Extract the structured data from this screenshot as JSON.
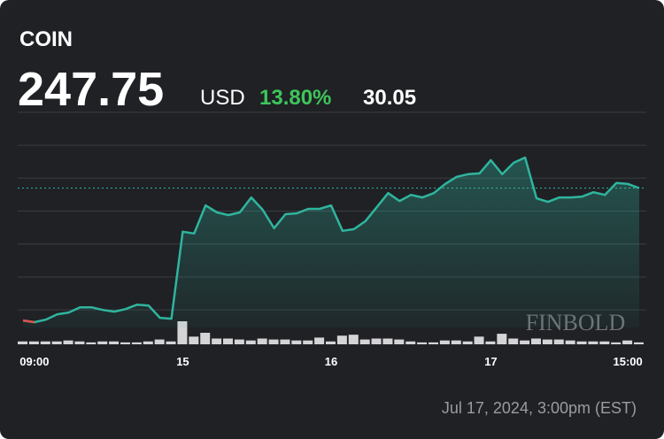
{
  "header": {
    "symbol": "COIN",
    "price": "247.75",
    "currency": "USD",
    "change_pct": "13.80%",
    "change": "30.05"
  },
  "watermark": "FINBOLD",
  "footer": {
    "timestamp": "Jul 17, 2024, 3:00pm (EST)"
  },
  "chart_data": {
    "type": "line",
    "categories": [
      null,
      "09:00",
      null,
      null,
      null,
      null,
      null,
      null,
      null,
      null,
      null,
      null,
      null,
      null,
      "15",
      null,
      null,
      null,
      null,
      null,
      null,
      null,
      null,
      null,
      null,
      null,
      null,
      "16",
      null,
      null,
      null,
      null,
      null,
      null,
      null,
      null,
      null,
      null,
      null,
      null,
      null,
      "17",
      null,
      null,
      null,
      null,
      null,
      null,
      null,
      null,
      null,
      null,
      null,
      "15:00",
      null
    ],
    "series": [
      {
        "name": "COIN",
        "color": "#2fb59e",
        "start_color": "#e0524b",
        "values": [
          217.6,
          217.2,
          217.8,
          219.0,
          219.4,
          220.6,
          220.6,
          220.0,
          219.6,
          220.2,
          221.2,
          221.0,
          218.2,
          218.0,
          237.8,
          237.4,
          243.8,
          242.2,
          241.6,
          242.2,
          245.6,
          242.8,
          238.6,
          241.8,
          242.0,
          243.0,
          243.0,
          243.8,
          238.0,
          238.4,
          240.2,
          243.4,
          246.6,
          244.8,
          246.2,
          245.6,
          246.6,
          248.7,
          250.3,
          250.9,
          251.1,
          254.1,
          250.9,
          253.5,
          254.7,
          245.4,
          244.6,
          245.6,
          245.6,
          245.8,
          246.8,
          246.2,
          248.9,
          248.7,
          247.75
        ]
      },
      {
        "name": "Volume",
        "color": "#d4d4d6",
        "values": [
          3,
          3,
          3,
          3,
          4,
          3,
          2,
          3,
          3,
          2,
          2,
          3,
          5,
          3,
          24,
          8,
          12,
          6,
          6,
          5,
          4,
          6,
          5,
          5,
          4,
          4,
          7,
          3,
          9,
          10,
          5,
          6,
          6,
          5,
          3,
          2,
          2,
          4,
          4,
          3,
          8,
          3,
          11,
          6,
          4,
          6,
          5,
          5,
          4,
          3,
          3,
          3,
          2,
          4,
          2
        ]
      }
    ],
    "ylim": [
      216,
      268
    ],
    "yticks": [
      220,
      227.5,
      235,
      242.5,
      250,
      257.5,
      265
    ],
    "grid": true
  }
}
